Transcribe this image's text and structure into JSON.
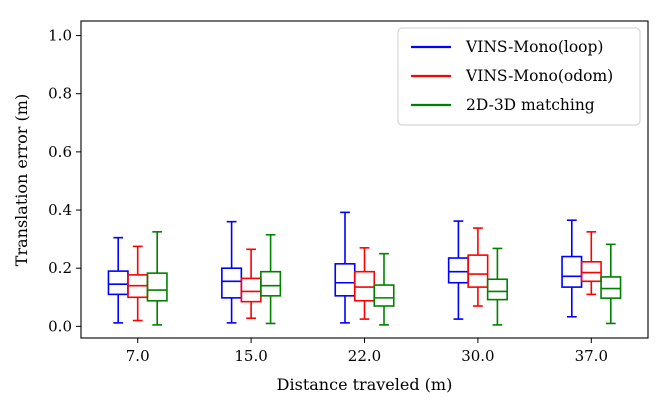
{
  "chart_data": {
    "type": "box",
    "xlabel": "Distance traveled (m)",
    "ylabel": "Translation error (m)",
    "ylim": [
      -0.04,
      1.05
    ],
    "y_ticks": [
      "0.0",
      "0.2",
      "0.4",
      "0.6",
      "0.8",
      "1.0"
    ],
    "y_tick_values": [
      0,
      0.2,
      0.4,
      0.6,
      0.8,
      1.0
    ],
    "categories": [
      "7.0",
      "15.0",
      "22.0",
      "30.0",
      "37.0"
    ],
    "grid": false,
    "legend_position": "top-right",
    "series": [
      {
        "name": "VINS-Mono(loop)",
        "color": "#0000ff",
        "boxes": [
          {
            "min": 0.012,
            "q1": 0.11,
            "median": 0.145,
            "q3": 0.19,
            "max": 0.305
          },
          {
            "min": 0.012,
            "q1": 0.098,
            "median": 0.155,
            "q3": 0.2,
            "max": 0.36
          },
          {
            "min": 0.012,
            "q1": 0.105,
            "median": 0.15,
            "q3": 0.215,
            "max": 0.392
          },
          {
            "min": 0.025,
            "q1": 0.15,
            "median": 0.188,
            "q3": 0.235,
            "max": 0.362
          },
          {
            "min": 0.033,
            "q1": 0.135,
            "median": 0.172,
            "q3": 0.24,
            "max": 0.365
          }
        ]
      },
      {
        "name": "VINS-Mono(odom)",
        "color": "#ff0000",
        "boxes": [
          {
            "min": 0.02,
            "q1": 0.1,
            "median": 0.14,
            "q3": 0.177,
            "max": 0.275
          },
          {
            "min": 0.028,
            "q1": 0.085,
            "median": 0.12,
            "q3": 0.165,
            "max": 0.265
          },
          {
            "min": 0.025,
            "q1": 0.088,
            "median": 0.135,
            "q3": 0.188,
            "max": 0.27
          },
          {
            "min": 0.07,
            "q1": 0.135,
            "median": 0.18,
            "q3": 0.245,
            "max": 0.338
          },
          {
            "min": 0.11,
            "q1": 0.155,
            "median": 0.185,
            "q3": 0.222,
            "max": 0.325
          }
        ]
      },
      {
        "name": "2D-3D matching",
        "color": "#008000",
        "boxes": [
          {
            "min": 0.005,
            "q1": 0.088,
            "median": 0.125,
            "q3": 0.183,
            "max": 0.325
          },
          {
            "min": 0.01,
            "q1": 0.105,
            "median": 0.14,
            "q3": 0.188,
            "max": 0.315
          },
          {
            "min": 0.005,
            "q1": 0.07,
            "median": 0.098,
            "q3": 0.142,
            "max": 0.25
          },
          {
            "min": 0.005,
            "q1": 0.092,
            "median": 0.12,
            "q3": 0.162,
            "max": 0.268
          },
          {
            "min": 0.01,
            "q1": 0.097,
            "median": 0.13,
            "q3": 0.17,
            "max": 0.282
          }
        ]
      }
    ]
  }
}
